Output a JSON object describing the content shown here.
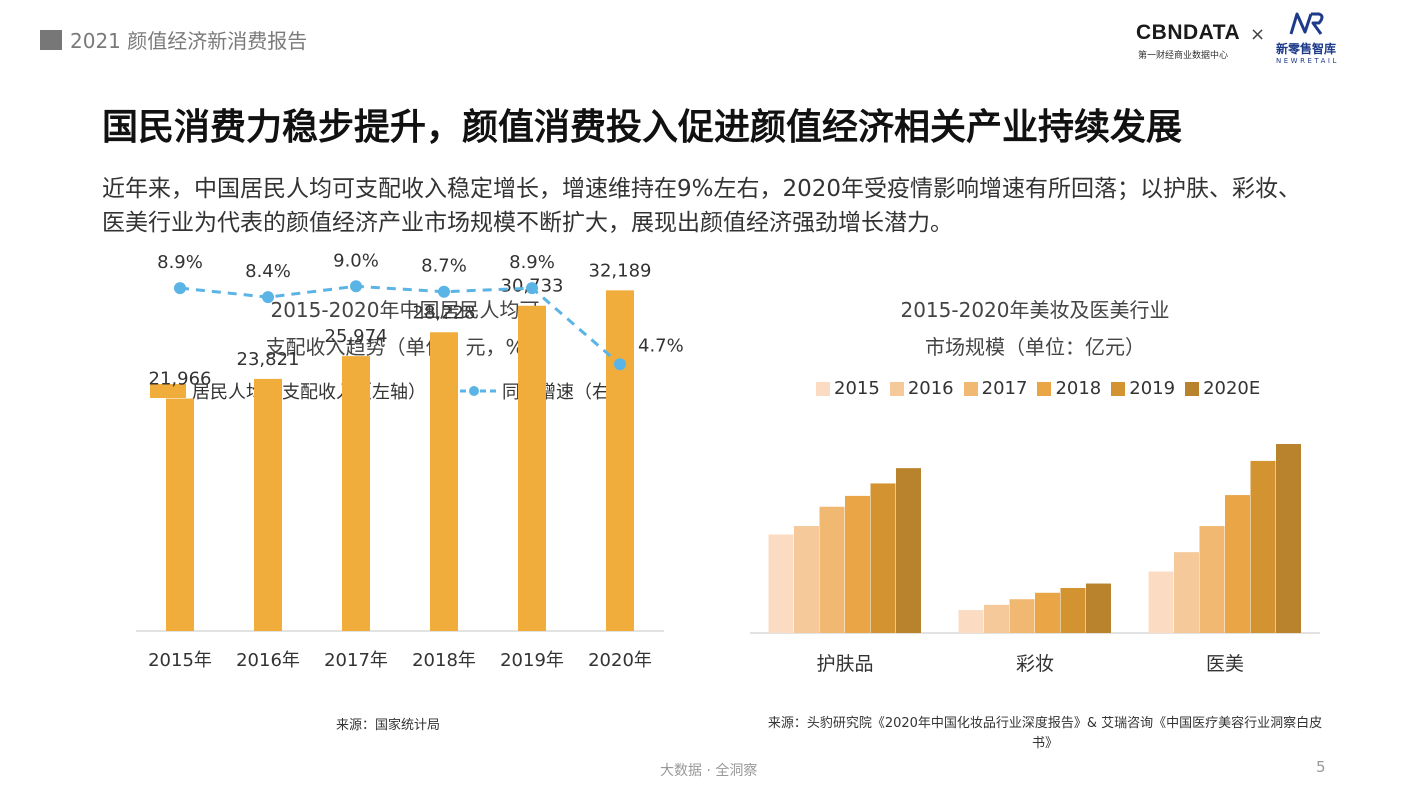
{
  "header": {
    "report_title": "2021 颜值经济新消费报告",
    "logo_cbn": "CBNDATA",
    "logo_cbn_sub": "第一财经商业数据中心",
    "logo_times": "×",
    "logo_nr": "新零售智库",
    "logo_nr_sub": "NEWRETAIL"
  },
  "main_title": "国民消费力稳步提升，颜值消费投入促进颜值经济相关产业持续发展",
  "description": {
    "line1": "近年来，中国居民人均可支配收入稳定增长，增速维持在9%左右，2020年受疫情影响增速有所回落；以护肤、彩妆、",
    "line2": "医美行业为代表的颜值经济产业市场规模不断扩大，展现出颜值经济强劲增长潜力。"
  },
  "chart_data": [
    {
      "type": "bar+line",
      "title_line1": "2015-2020年中国居民人均可",
      "title_line2": "支配收入趋势（单位：元，%）",
      "categories": [
        "2015年",
        "2016年",
        "2017年",
        "2018年",
        "2019年",
        "2020年"
      ],
      "series": [
        {
          "name": "居民人均可支配收入（左轴）",
          "type": "bar",
          "axis": "left",
          "color": "#f0ad3c",
          "values": [
            21966,
            23821,
            25974,
            28228,
            30733,
            32189
          ],
          "labels": [
            "21,966",
            "23,821",
            "25,974",
            "28,228",
            "30,733",
            "32,189"
          ]
        },
        {
          "name": "同比增速（右轴）",
          "type": "line",
          "axis": "right",
          "color": "#5ab4e6",
          "line_style": "dashed",
          "values": [
            8.9,
            8.4,
            9.0,
            8.7,
            8.9,
            4.7
          ],
          "labels": [
            "8.9%",
            "8.4%",
            "9.0%",
            "8.7%",
            "8.9%",
            "4.7%"
          ]
        }
      ],
      "y_left_range": [
        0,
        36000
      ],
      "y_right_range": [
        -10,
        11
      ],
      "grid": false,
      "legend": "top",
      "source": "来源：国家统计局"
    },
    {
      "type": "bar",
      "title_line1": "2015-2020年美妆及医美行业",
      "title_line2": "市场规模（单位：亿元）",
      "categories": [
        "护肤品",
        "彩妆",
        "医美"
      ],
      "series": [
        {
          "name": "2015",
          "color": "#fbdcc3",
          "values": [
            2450,
            570,
            1530
          ]
        },
        {
          "name": "2016",
          "color": "#f5c99a",
          "values": [
            2660,
            700,
            2010
          ]
        },
        {
          "name": "2017",
          "color": "#f0b870",
          "values": [
            3140,
            840,
            2660
          ]
        },
        {
          "name": "2018",
          "color": "#e9a546",
          "values": [
            3410,
            1000,
            3430
          ]
        },
        {
          "name": "2019",
          "color": "#d39331",
          "values": [
            3720,
            1120,
            4280
          ]
        },
        {
          "name": "2020E",
          "color": "#b8832c",
          "values": [
            4100,
            1230,
            4700
          ]
        }
      ],
      "y_range": [
        0,
        4800
      ],
      "value_labels": false,
      "grid": false,
      "legend": "top",
      "source_line1": "来源：头豹研究院《2020年中国化妆品行业深度报告》& 艾瑞咨询《中国医疗美容行业洞察白皮",
      "source_line2": "书》"
    }
  ],
  "footer": {
    "tagline": "大数据 · 全洞察",
    "page_number": "5"
  }
}
